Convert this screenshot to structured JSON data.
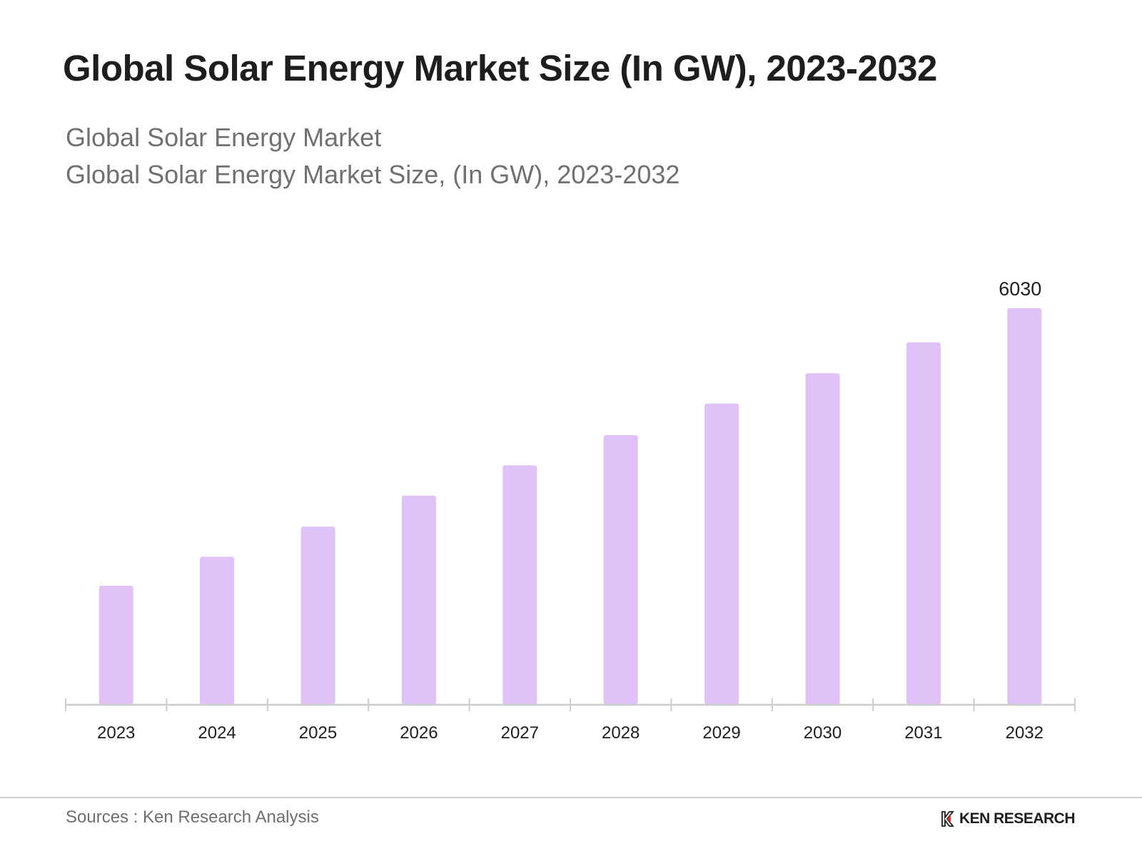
{
  "header": {
    "title": "Global Solar Energy Market Size (In GW), 2023-2032",
    "subtitle_line1": "Global Solar Energy Market",
    "subtitle_line2": "Global Solar Energy Market Size, (In GW), 2023-2032"
  },
  "chart_data": {
    "type": "bar",
    "title": "Global Solar Energy Market Size (In GW), 2023-2032",
    "xlabel": "",
    "ylabel": "GW",
    "categories": [
      "2023",
      "2024",
      "2025",
      "2026",
      "2027",
      "2028",
      "2029",
      "2030",
      "2031",
      "2032"
    ],
    "values": [
      1810,
      2250,
      2710,
      3180,
      3640,
      4100,
      4580,
      5040,
      5510,
      6030
    ],
    "data_labels": {
      "2032": "6030"
    },
    "ylim": [
      0,
      6030
    ],
    "grid": false,
    "legend": "none",
    "bar_color": "#dfc2f7",
    "axis_color": "#cccccc"
  },
  "footer": {
    "source": "Sources : Ken Research Analysis",
    "brand": "KEN RESEARCH",
    "brand_icon": "ken-research-logo-icon"
  }
}
